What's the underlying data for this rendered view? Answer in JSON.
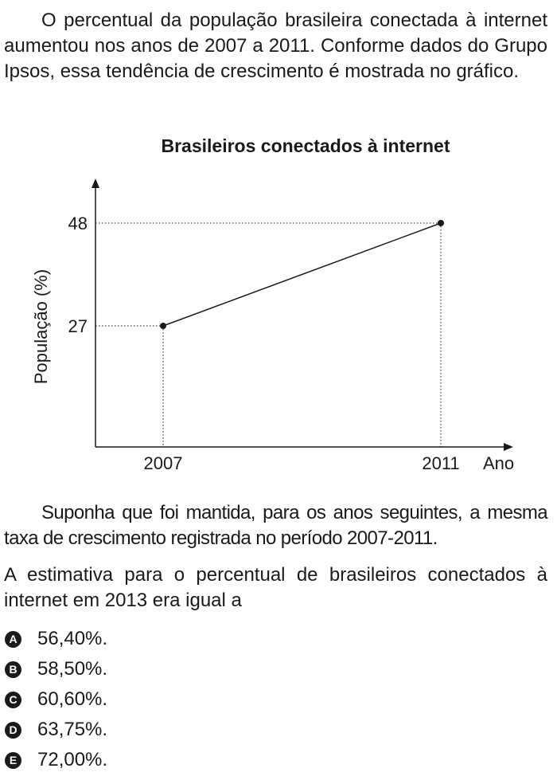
{
  "intro": "O percentual da população brasileira conectada à internet aumentou nos anos de 2007 a 2011. Conforme dados do Grupo Ipsos, essa tendência de crescimento é mostrada no gráfico.",
  "chart_data": {
    "type": "line",
    "title": "Brasileiros conectados à internet",
    "xlabel": "Ano",
    "ylabel": "População (%)",
    "x": [
      2007,
      2011
    ],
    "y": [
      27,
      48
    ],
    "xticks": [
      "2007",
      "2011"
    ],
    "yticks": [
      "27",
      "48"
    ],
    "grid": false
  },
  "assumption": "Suponha que foi mantida, para os anos seguintes, a mesma taxa de crescimento registrada no período 2007-2011.",
  "question": "A estimativa para o percentual de brasileiros conectados à internet em 2013 era igual a",
  "options": [
    {
      "letter": "A",
      "text": "56,40%."
    },
    {
      "letter": "B",
      "text": "58,50%."
    },
    {
      "letter": "C",
      "text": "60,60%."
    },
    {
      "letter": "D",
      "text": "63,75%."
    },
    {
      "letter": "E",
      "text": "72,00%."
    }
  ]
}
